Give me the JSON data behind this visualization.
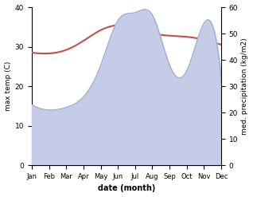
{
  "months": [
    "Jan",
    "Feb",
    "Mar",
    "Apr",
    "May",
    "Jun",
    "Jul",
    "Aug",
    "Sep",
    "Oct",
    "Nov",
    "Dec"
  ],
  "temp": [
    28.5,
    28.3,
    29.2,
    31.5,
    34.2,
    35.5,
    35.2,
    33.5,
    32.8,
    32.5,
    31.8,
    30.5
  ],
  "precip": [
    23,
    21,
    22,
    26,
    38,
    55,
    58,
    57,
    38,
    36,
    54,
    33
  ],
  "temp_color": "#c0504d",
  "precip_color": "#9da8cc",
  "precip_fill_color": "#c5cce8",
  "bg_color": "#ffffff",
  "xlabel": "date (month)",
  "ylabel_left": "max temp (C)",
  "ylabel_right": "med. precipitation (kg/m2)",
  "ylim_left": [
    0,
    40
  ],
  "ylim_right": [
    0,
    60
  ],
  "yticks_left": [
    0,
    10,
    20,
    30,
    40
  ],
  "yticks_right": [
    0,
    10,
    20,
    30,
    40,
    50,
    60
  ]
}
